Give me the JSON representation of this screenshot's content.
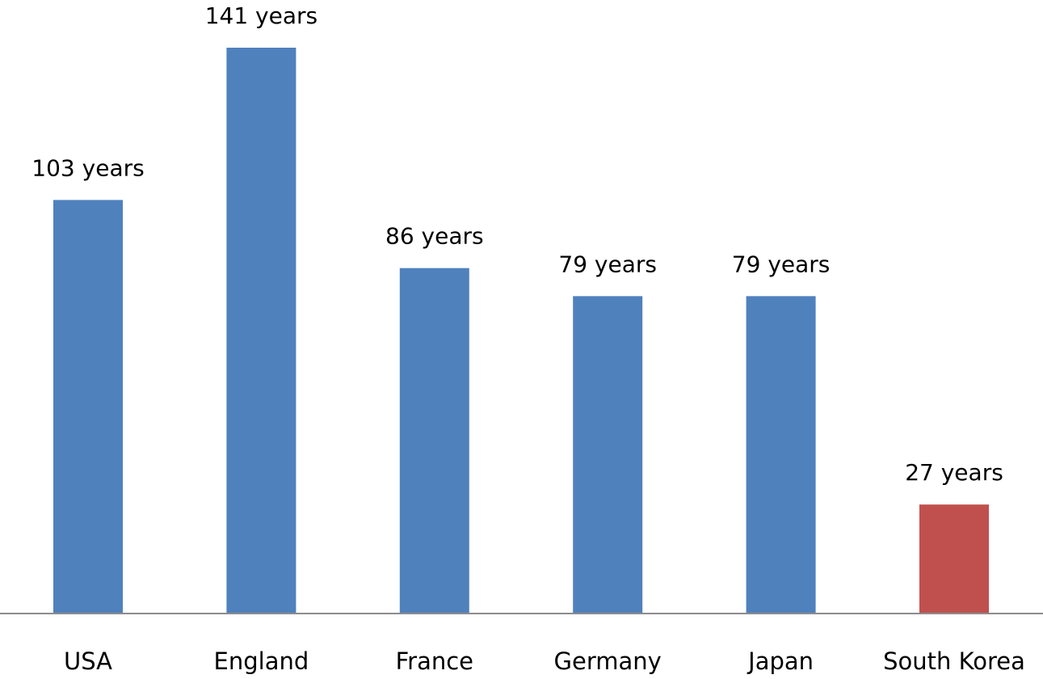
{
  "chart_data": {
    "type": "bar",
    "title": "",
    "xlabel": "",
    "ylabel": "",
    "categories": [
      "USA",
      "England",
      "France",
      "Germany",
      "Japan",
      "South Korea"
    ],
    "values": [
      103,
      141,
      86,
      79,
      79,
      27
    ],
    "data_labels": [
      "103 years",
      "141 years",
      "86 years",
      "79 years",
      "79 years",
      "27 years"
    ],
    "ylim": [
      0,
      141
    ],
    "grid": false,
    "legend": "none",
    "colors": {
      "default": "#4F81BD",
      "highlight": "#C0504D",
      "axis": "#8C8C8C"
    },
    "highlight_category": "South Korea"
  }
}
